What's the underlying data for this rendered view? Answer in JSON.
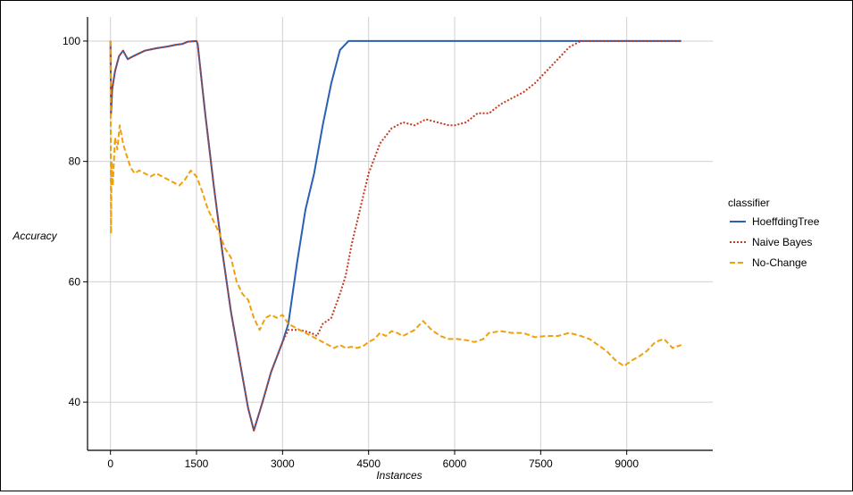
{
  "chart_data": {
    "type": "line",
    "title": "",
    "xlabel": "Instances",
    "ylabel": "Accuracy",
    "xlim": [
      -400,
      10500
    ],
    "ylim": [
      32,
      104
    ],
    "xticks": [
      0,
      1500,
      3000,
      4500,
      6000,
      7500,
      9000
    ],
    "yticks": [
      40,
      60,
      80,
      100
    ],
    "x_tick_labels": [
      "0",
      "1500",
      "3000",
      "4500",
      "6000",
      "7500",
      "9000"
    ],
    "y_tick_labels": [
      "40",
      "60",
      "80",
      "100"
    ],
    "grid": true,
    "legend": {
      "title": "classifier",
      "placement": "right"
    },
    "series": [
      {
        "name": "HoeffdingTree",
        "color": "#2b5fb4",
        "dash": "solid",
        "points": [
          [
            0,
            100
          ],
          [
            10,
            88
          ],
          [
            30,
            92
          ],
          [
            80,
            95
          ],
          [
            150,
            97.5
          ],
          [
            220,
            98.4
          ],
          [
            300,
            97
          ],
          [
            400,
            97.5
          ],
          [
            600,
            98.4
          ],
          [
            800,
            98.8
          ],
          [
            1000,
            99.1
          ],
          [
            1150,
            99.4
          ],
          [
            1250,
            99.5
          ],
          [
            1350,
            99.9
          ],
          [
            1500,
            100
          ],
          [
            1520,
            99.5
          ],
          [
            1650,
            88
          ],
          [
            1800,
            76
          ],
          [
            1950,
            65
          ],
          [
            2100,
            55
          ],
          [
            2250,
            47
          ],
          [
            2400,
            39
          ],
          [
            2500,
            35.3
          ],
          [
            2650,
            40
          ],
          [
            2800,
            45
          ],
          [
            3000,
            50
          ],
          [
            3100,
            53
          ],
          [
            3250,
            63
          ],
          [
            3400,
            72
          ],
          [
            3550,
            78
          ],
          [
            3700,
            86
          ],
          [
            3850,
            93
          ],
          [
            4000,
            98.5
          ],
          [
            4150,
            100
          ],
          [
            4500,
            100
          ],
          [
            6000,
            100
          ],
          [
            7500,
            100
          ],
          [
            9000,
            100
          ],
          [
            9950,
            100
          ]
        ]
      },
      {
        "name": "Naive Bayes",
        "color": "#c23b22",
        "dash": "dotted",
        "points": [
          [
            0,
            100
          ],
          [
            10,
            88
          ],
          [
            30,
            92
          ],
          [
            80,
            95
          ],
          [
            150,
            97.5
          ],
          [
            220,
            98.4
          ],
          [
            300,
            97
          ],
          [
            400,
            97.5
          ],
          [
            600,
            98.4
          ],
          [
            800,
            98.8
          ],
          [
            1000,
            99.1
          ],
          [
            1150,
            99.4
          ],
          [
            1250,
            99.5
          ],
          [
            1350,
            99.9
          ],
          [
            1500,
            100
          ],
          [
            1520,
            99.5
          ],
          [
            1650,
            88
          ],
          [
            1800,
            76
          ],
          [
            1950,
            65
          ],
          [
            2100,
            55
          ],
          [
            2250,
            47
          ],
          [
            2400,
            39
          ],
          [
            2500,
            35.3
          ],
          [
            2650,
            40
          ],
          [
            2800,
            45
          ],
          [
            3000,
            50
          ],
          [
            3100,
            52
          ],
          [
            3300,
            52
          ],
          [
            3500,
            51.5
          ],
          [
            3600,
            51
          ],
          [
            3700,
            53
          ],
          [
            3850,
            54
          ],
          [
            4000,
            58
          ],
          [
            4100,
            61
          ],
          [
            4200,
            66
          ],
          [
            4350,
            72
          ],
          [
            4500,
            78
          ],
          [
            4700,
            83
          ],
          [
            4900,
            85.5
          ],
          [
            5100,
            86.5
          ],
          [
            5300,
            86
          ],
          [
            5500,
            87
          ],
          [
            5700,
            86.5
          ],
          [
            5900,
            86
          ],
          [
            6000,
            86
          ],
          [
            6200,
            86.5
          ],
          [
            6400,
            88
          ],
          [
            6600,
            88
          ],
          [
            6800,
            89.5
          ],
          [
            7000,
            90.5
          ],
          [
            7200,
            91.5
          ],
          [
            7400,
            93
          ],
          [
            7600,
            95
          ],
          [
            7800,
            97
          ],
          [
            8000,
            99
          ],
          [
            8200,
            100
          ],
          [
            9000,
            100
          ],
          [
            9950,
            100
          ]
        ]
      },
      {
        "name": "No-Change",
        "color": "#f0a00c",
        "dash": "dashed",
        "points": [
          [
            0,
            100
          ],
          [
            10,
            68
          ],
          [
            20,
            80
          ],
          [
            40,
            76
          ],
          [
            80,
            84
          ],
          [
            120,
            82
          ],
          [
            160,
            86
          ],
          [
            220,
            83
          ],
          [
            280,
            81
          ],
          [
            350,
            79
          ],
          [
            420,
            78
          ],
          [
            500,
            78.5
          ],
          [
            600,
            78
          ],
          [
            700,
            77.5
          ],
          [
            800,
            78
          ],
          [
            900,
            77.5
          ],
          [
            1000,
            77
          ],
          [
            1100,
            76.5
          ],
          [
            1200,
            76
          ],
          [
            1300,
            77
          ],
          [
            1400,
            78.5
          ],
          [
            1500,
            77.5
          ],
          [
            1600,
            75
          ],
          [
            1700,
            72
          ],
          [
            1800,
            70
          ],
          [
            1900,
            68
          ],
          [
            2000,
            65.5
          ],
          [
            2100,
            64
          ],
          [
            2200,
            60
          ],
          [
            2300,
            58
          ],
          [
            2400,
            57
          ],
          [
            2500,
            54
          ],
          [
            2600,
            52
          ],
          [
            2700,
            54
          ],
          [
            2800,
            54.5
          ],
          [
            2900,
            54
          ],
          [
            3000,
            54.5
          ],
          [
            3100,
            53
          ],
          [
            3200,
            52.5
          ],
          [
            3300,
            52
          ],
          [
            3400,
            51.5
          ],
          [
            3500,
            51
          ],
          [
            3600,
            50.5
          ],
          [
            3700,
            50
          ],
          [
            3800,
            49.5
          ],
          [
            3900,
            49
          ],
          [
            4000,
            49.5
          ],
          [
            4100,
            49
          ],
          [
            4200,
            49.2
          ],
          [
            4300,
            49
          ],
          [
            4400,
            49.3
          ],
          [
            4500,
            50
          ],
          [
            4600,
            50.5
          ],
          [
            4700,
            51.5
          ],
          [
            4800,
            51
          ],
          [
            4900,
            51.8
          ],
          [
            5000,
            51.5
          ],
          [
            5100,
            51
          ],
          [
            5200,
            51.5
          ],
          [
            5300,
            52
          ],
          [
            5450,
            53.5
          ],
          [
            5600,
            52
          ],
          [
            5750,
            51
          ],
          [
            5900,
            50.5
          ],
          [
            6050,
            50.5
          ],
          [
            6200,
            50.3
          ],
          [
            6350,
            50
          ],
          [
            6500,
            50.5
          ],
          [
            6600,
            51.5
          ],
          [
            6800,
            51.8
          ],
          [
            7000,
            51.5
          ],
          [
            7200,
            51.5
          ],
          [
            7400,
            50.8
          ],
          [
            7600,
            51
          ],
          [
            7800,
            51
          ],
          [
            8000,
            51.5
          ],
          [
            8200,
            51
          ],
          [
            8350,
            50.5
          ],
          [
            8500,
            49.5
          ],
          [
            8650,
            48.5
          ],
          [
            8800,
            47
          ],
          [
            8950,
            46
          ],
          [
            9100,
            47
          ],
          [
            9200,
            47.5
          ],
          [
            9350,
            48.5
          ],
          [
            9500,
            50
          ],
          [
            9650,
            50.5
          ],
          [
            9800,
            49
          ],
          [
            9950,
            49.5
          ]
        ]
      }
    ]
  }
}
